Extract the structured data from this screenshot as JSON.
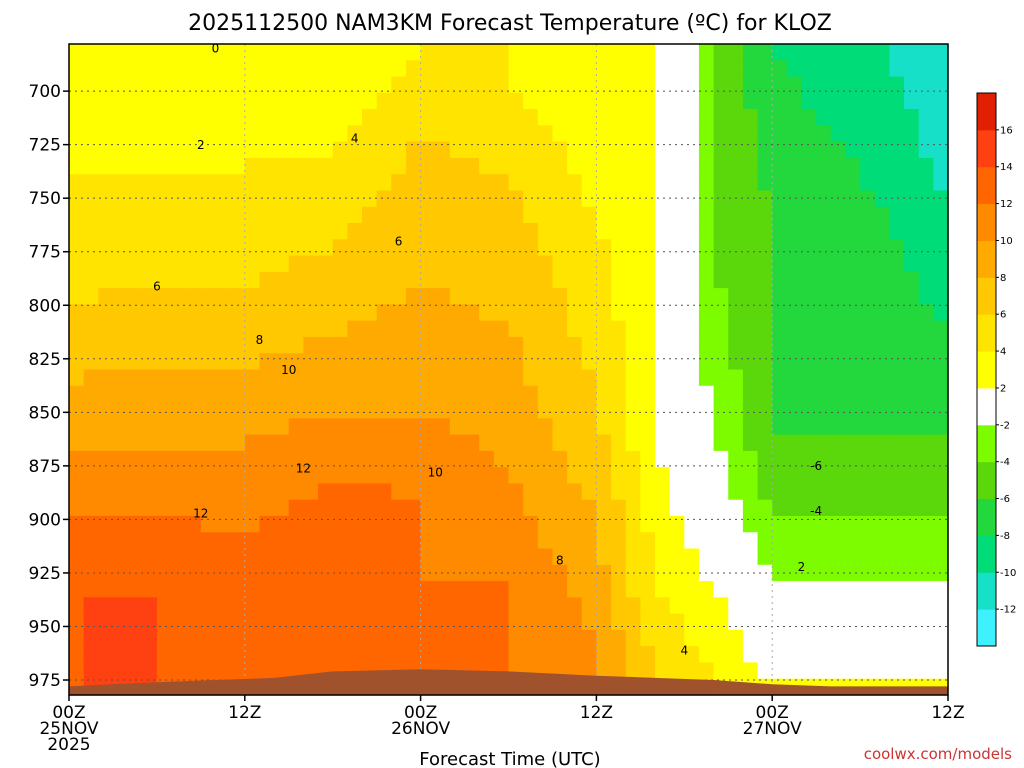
{
  "chart_data": {
    "type": "heatmap",
    "title": "2025112500 NAM3KM Forecast Temperature (ºC) for KLOZ",
    "xlabel": "Forecast Time (UTC)",
    "ylabel": "",
    "x_ticks": [
      {
        "hour": 0,
        "lines": [
          "00Z",
          "25NOV",
          "2025"
        ]
      },
      {
        "hour": 12,
        "lines": [
          "12Z"
        ]
      },
      {
        "hour": 24,
        "lines": [
          "00Z",
          "26NOV"
        ]
      },
      {
        "hour": 36,
        "lines": [
          "12Z"
        ]
      },
      {
        "hour": 48,
        "lines": [
          "00Z",
          "27NOV"
        ]
      },
      {
        "hour": 60,
        "lines": [
          "12Z"
        ]
      }
    ],
    "xlim": [
      0,
      60
    ],
    "y_ticks": [
      700,
      725,
      750,
      775,
      800,
      825,
      850,
      875,
      900,
      925,
      950,
      975
    ],
    "ylim": [
      982,
      678
    ],
    "y_units": "hPa",
    "colorbar": {
      "levels": [
        -12,
        -10,
        -8,
        -6,
        -4,
        -2,
        2,
        4,
        6,
        8,
        10,
        12,
        14,
        16
      ],
      "colors": [
        "#3ff0ff",
        "#16e0c8",
        "#00dc78",
        "#22d83c",
        "#5ad80c",
        "#7dfc00",
        "#ffffff",
        "#ffff00",
        "#ffe400",
        "#ffc800",
        "#ffaa00",
        "#ff8a00",
        "#ff6600",
        "#ff4010",
        "#e02000"
      ]
    },
    "contour_labels": [
      {
        "text": "0",
        "hour": 10.0,
        "p": 682
      },
      {
        "text": "2",
        "hour": 9.0,
        "p": 727
      },
      {
        "text": "4",
        "hour": 19.5,
        "p": 724
      },
      {
        "text": "6",
        "hour": 22.5,
        "p": 772
      },
      {
        "text": "6",
        "hour": 6.0,
        "p": 793
      },
      {
        "text": "8",
        "hour": 13.0,
        "p": 818
      },
      {
        "text": "10",
        "hour": 15.0,
        "p": 832
      },
      {
        "text": "12",
        "hour": 16.0,
        "p": 878
      },
      {
        "text": "10",
        "hour": 25.0,
        "p": 880
      },
      {
        "text": "12",
        "hour": 9.0,
        "p": 899
      },
      {
        "text": "8",
        "hour": 33.5,
        "p": 921
      },
      {
        "text": "4",
        "hour": 42.0,
        "p": 963
      },
      {
        "text": "-6",
        "hour": 51.0,
        "p": 877
      },
      {
        "text": "-4",
        "hour": 51.0,
        "p": 898
      },
      {
        "text": "2",
        "hour": 50.0,
        "p": 924
      }
    ],
    "temperature_field": [
      {
        "hour": 0,
        "band": [
          [
            690,
            2
          ],
          [
            740,
            4
          ],
          [
            800,
            6
          ],
          [
            835,
            8
          ],
          [
            865,
            10
          ],
          [
            900,
            12
          ],
          [
            930,
            14
          ],
          [
            975,
            14
          ]
        ]
      },
      {
        "hour": 6,
        "band": [
          [
            690,
            2
          ],
          [
            740,
            4
          ],
          [
            790,
            6
          ],
          [
            830,
            8
          ],
          [
            865,
            10
          ],
          [
            900,
            12
          ],
          [
            935,
            14
          ],
          [
            975,
            14
          ]
        ]
      },
      {
        "hour": 12,
        "band": [
          [
            700,
            2
          ],
          [
            735,
            4
          ],
          [
            790,
            6
          ],
          [
            830,
            8
          ],
          [
            865,
            10
          ],
          [
            905,
            12
          ],
          [
            975,
            12
          ]
        ]
      },
      {
        "hour": 18,
        "band": [
          [
            690,
            2
          ],
          [
            730,
            4
          ],
          [
            775,
            6
          ],
          [
            815,
            8
          ],
          [
            850,
            10
          ],
          [
            880,
            12
          ],
          [
            945,
            14
          ],
          [
            975,
            14
          ]
        ]
      },
      {
        "hour": 24,
        "band": [
          [
            680,
            4
          ],
          [
            720,
            6
          ],
          [
            790,
            8
          ],
          [
            850,
            10
          ],
          [
            890,
            12
          ],
          [
            975,
            12
          ]
        ]
      },
      {
        "hour": 30,
        "band": [
          [
            700,
            4
          ],
          [
            740,
            6
          ],
          [
            810,
            8
          ],
          [
            880,
            10
          ],
          [
            930,
            12
          ],
          [
            975,
            12
          ]
        ]
      },
      {
        "hour": 36,
        "band": [
          [
            680,
            2
          ],
          [
            760,
            4
          ],
          [
            840,
            6
          ],
          [
            900,
            8
          ],
          [
            960,
            10
          ],
          [
            975,
            10
          ]
        ]
      },
      {
        "hour": 40,
        "band": [
          [
            680,
            2
          ],
          [
            760,
            2
          ],
          [
            860,
            2
          ],
          [
            930,
            4
          ],
          [
            975,
            6
          ]
        ]
      },
      {
        "hour": 44,
        "band": [
          [
            680,
            -4
          ],
          [
            780,
            -4
          ],
          [
            860,
            -2
          ],
          [
            930,
            2
          ],
          [
            975,
            4
          ]
        ]
      },
      {
        "hour": 48,
        "band": [
          [
            680,
            -8
          ],
          [
            760,
            -6
          ],
          [
            860,
            -6
          ],
          [
            900,
            -4
          ],
          [
            930,
            -2
          ],
          [
            975,
            2
          ]
        ]
      },
      {
        "hour": 56,
        "band": [
          [
            680,
            -10
          ],
          [
            760,
            -8
          ],
          [
            860,
            -6
          ],
          [
            900,
            -4
          ],
          [
            930,
            -2
          ],
          [
            975,
            2
          ]
        ]
      },
      {
        "hour": 60,
        "band": [
          [
            680,
            -12
          ],
          [
            760,
            -10
          ],
          [
            860,
            -6
          ],
          [
            900,
            -4
          ],
          [
            930,
            -2
          ],
          [
            975,
            2
          ]
        ]
      }
    ],
    "surface": {
      "label": "ground",
      "color": "#a0522d",
      "points": [
        [
          0,
          978
        ],
        [
          3,
          977
        ],
        [
          6,
          976
        ],
        [
          10,
          975
        ],
        [
          14,
          974
        ],
        [
          18,
          971
        ],
        [
          24,
          970
        ],
        [
          30,
          971
        ],
        [
          36,
          973
        ],
        [
          40,
          974
        ],
        [
          44,
          975
        ],
        [
          48,
          977
        ],
        [
          52,
          978
        ],
        [
          60,
          978
        ]
      ]
    }
  },
  "credit": "coolwx.com/models"
}
